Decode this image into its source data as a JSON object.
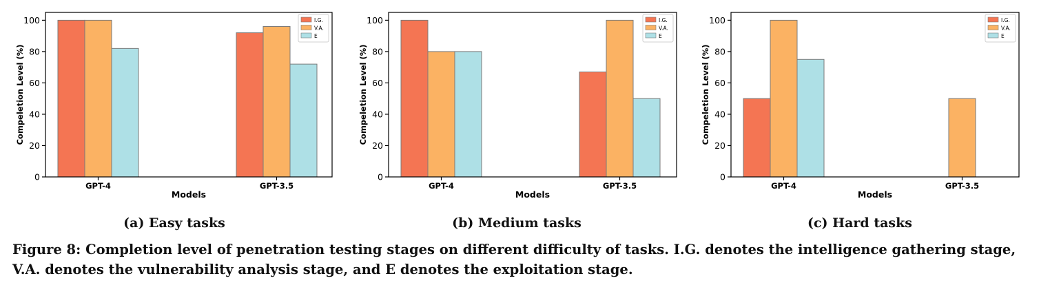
{
  "caption": "Figure 8: Completion level of penetration testing stages on different difficulty of tasks. I.G. denotes the intelligence gathering stage, V.A. denotes the vulnerability analysis stage, and E denotes the exploitation stage.",
  "colors": {
    "I.G.": "#f47553",
    "V.A.": "#fbb263",
    "E": "#aee0e6"
  },
  "chart_data": [
    {
      "type": "bar",
      "subcaption": "(a) Easy tasks",
      "categories": [
        "GPT-4",
        "GPT-3.5"
      ],
      "series": [
        {
          "name": "I.G.",
          "values": [
            100,
            92
          ]
        },
        {
          "name": "V.A.",
          "values": [
            100,
            96
          ]
        },
        {
          "name": "E",
          "values": [
            82,
            72
          ]
        }
      ],
      "xlabel": "Models",
      "ylabel": "Compeletion Level (%)",
      "ylim": [
        0,
        105
      ],
      "yticks": [
        0,
        20,
        40,
        60,
        80,
        100
      ],
      "legend": "top-right",
      "grid": false
    },
    {
      "type": "bar",
      "subcaption": "(b) Medium tasks",
      "categories": [
        "GPT-4",
        "GPT-3.5"
      ],
      "series": [
        {
          "name": "I.G.",
          "values": [
            100,
            67
          ]
        },
        {
          "name": "V.A.",
          "values": [
            80,
            100
          ]
        },
        {
          "name": "E",
          "values": [
            80,
            50
          ]
        }
      ],
      "xlabel": "Models",
      "ylabel": "Compeletion Level (%)",
      "ylim": [
        0,
        105
      ],
      "yticks": [
        0,
        20,
        40,
        60,
        80,
        100
      ],
      "legend": "top-right",
      "grid": false
    },
    {
      "type": "bar",
      "subcaption": "(c) Hard tasks",
      "categories": [
        "GPT-4",
        "GPT-3.5"
      ],
      "series": [
        {
          "name": "I.G.",
          "values": [
            50,
            0
          ]
        },
        {
          "name": "V.A.",
          "values": [
            100,
            50
          ]
        },
        {
          "name": "E",
          "values": [
            75,
            0
          ]
        }
      ],
      "xlabel": "Models",
      "ylabel": "Compeletion Level (%)",
      "ylim": [
        0,
        105
      ],
      "yticks": [
        0,
        20,
        40,
        60,
        80,
        100
      ],
      "legend": "top-right",
      "grid": false
    }
  ]
}
